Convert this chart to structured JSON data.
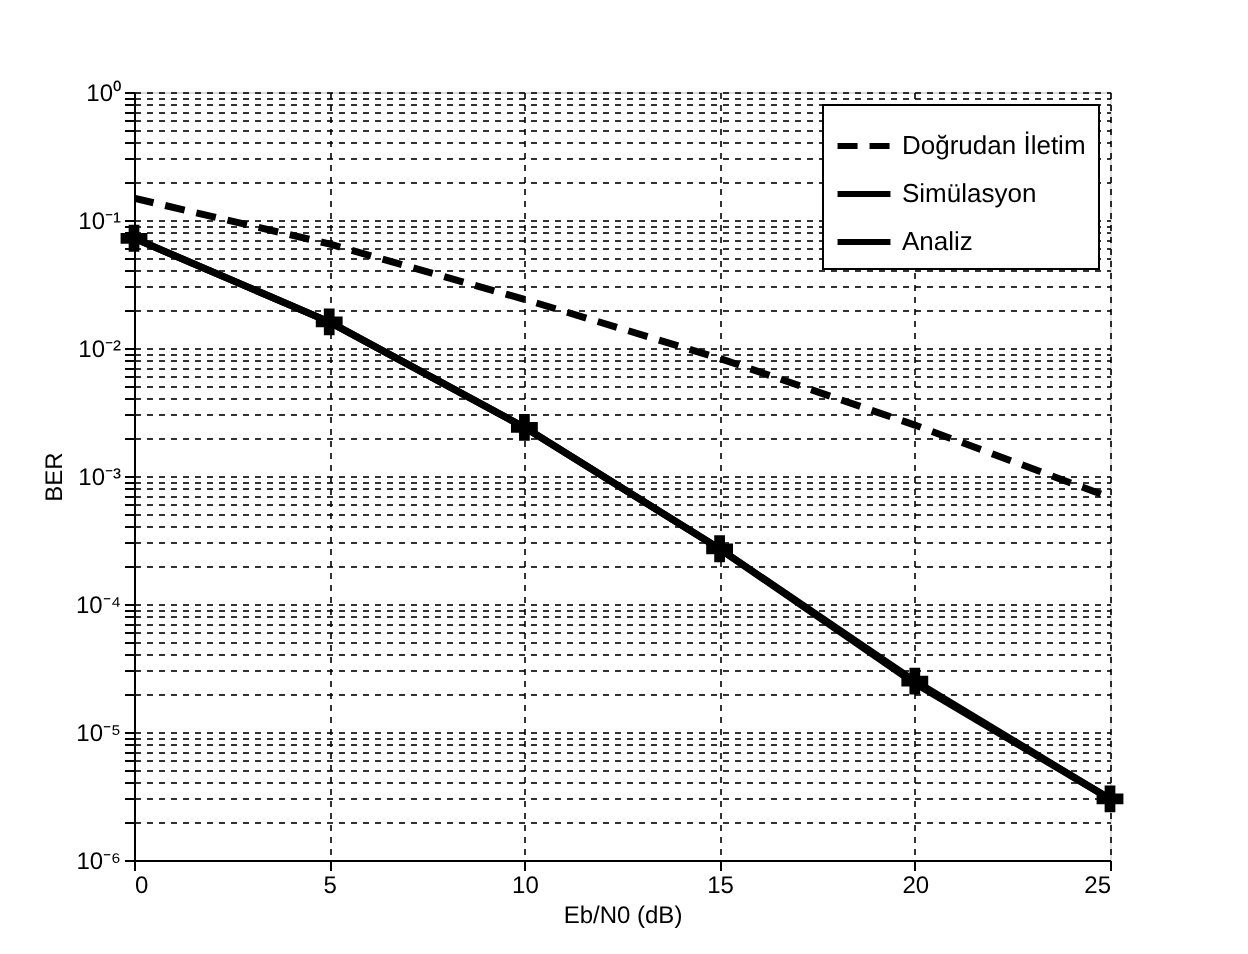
{
  "chart_data": {
    "type": "line",
    "xlabel": "Eb/N0 (dB)",
    "ylabel": "BER",
    "log": "y",
    "grid": true,
    "legend": "top right",
    "xlim": [
      0,
      25
    ],
    "xticks": [
      0,
      5,
      10,
      15,
      20,
      25
    ],
    "ylim": [
      1e-06,
      1
    ],
    "yticks": [
      {
        "value": 1e-06,
        "label": "10⁻⁶"
      },
      {
        "value": 2e-06,
        "label": null
      },
      {
        "value": 3e-06,
        "label": null
      },
      {
        "value": 4e-06,
        "label": null
      },
      {
        "value": 5e-06,
        "label": null
      },
      {
        "value": 6e-06,
        "label": null
      },
      {
        "value": 7e-06,
        "label": null
      },
      {
        "value": 8e-06,
        "label": null
      },
      {
        "value": 9e-06,
        "label": null
      },
      {
        "value": 1e-05,
        "label": "10⁻⁵"
      },
      {
        "value": 2e-05,
        "label": null
      },
      {
        "value": 3e-05,
        "label": null
      },
      {
        "value": 4e-05,
        "label": null
      },
      {
        "value": 5e-05,
        "label": null
      },
      {
        "value": 6e-05,
        "label": null
      },
      {
        "value": 7e-05,
        "label": null
      },
      {
        "value": 8e-05,
        "label": null
      },
      {
        "value": 9e-05,
        "label": null
      },
      {
        "value": 0.0001,
        "label": "10⁻⁴"
      },
      {
        "value": 0.0002,
        "label": null
      },
      {
        "value": 0.0003,
        "label": null
      },
      {
        "value": 0.0004,
        "label": null
      },
      {
        "value": 0.0005,
        "label": null
      },
      {
        "value": 0.0006,
        "label": null
      },
      {
        "value": 0.0007,
        "label": null
      },
      {
        "value": 0.0008,
        "label": null
      },
      {
        "value": 0.0009,
        "label": null
      },
      {
        "value": 0.001,
        "label": "10⁻³"
      },
      {
        "value": 0.002,
        "label": null
      },
      {
        "value": 0.003,
        "label": null
      },
      {
        "value": 0.004,
        "label": null
      },
      {
        "value": 0.005,
        "label": null
      },
      {
        "value": 0.006,
        "label": null
      },
      {
        "value": 0.007,
        "label": null
      },
      {
        "value": 0.008,
        "label": null
      },
      {
        "value": 0.009,
        "label": null
      },
      {
        "value": 0.01,
        "label": "10⁻²"
      },
      {
        "value": 0.02,
        "label": null
      },
      {
        "value": 0.03,
        "label": null
      },
      {
        "value": 0.04,
        "label": null
      },
      {
        "value": 0.05,
        "label": null
      },
      {
        "value": 0.06,
        "label": null
      },
      {
        "value": 0.07,
        "label": null
      },
      {
        "value": 0.08,
        "label": null
      },
      {
        "value": 0.09,
        "label": null
      },
      {
        "value": 0.1,
        "label": "10⁻¹"
      },
      {
        "value": 0.2,
        "label": null
      },
      {
        "value": 0.3,
        "label": null
      },
      {
        "value": 0.4,
        "label": null
      },
      {
        "value": 0.5,
        "label": null
      },
      {
        "value": 0.6,
        "label": null
      },
      {
        "value": 0.7,
        "label": null
      },
      {
        "value": 0.8,
        "label": null
      },
      {
        "value": 0.9,
        "label": null
      },
      {
        "value": 1,
        "label": "10⁰"
      }
    ],
    "x": [
      0,
      5,
      10,
      15,
      20,
      25
    ],
    "series": [
      {
        "name": "Doğrudan İletim",
        "color": "#000000",
        "line_style": "dashed",
        "marker": "none",
        "values": [
          0.148,
          0.065,
          0.024,
          0.0083,
          0.0025,
          0.00068
        ]
      },
      {
        "name": "Simülasyon",
        "color": "#000000",
        "line_style": "solid",
        "marker": "cross",
        "values": [
          0.072,
          0.016,
          0.0024,
          0.00027,
          2.5e-05,
          3e-06
        ]
      },
      {
        "name": "Analiz",
        "color": "#000000",
        "line_style": "solid",
        "marker": "none",
        "values": [
          0.072,
          0.016,
          0.0024,
          0.00027,
          2.4e-05,
          3e-06
        ]
      }
    ]
  }
}
